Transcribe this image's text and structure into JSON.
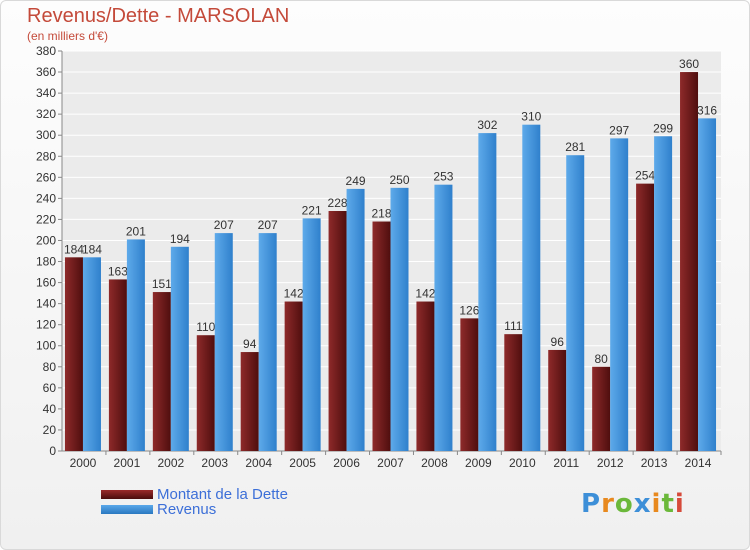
{
  "chart_data": {
    "type": "bar",
    "title": "Revenus/Dette - MARSOLAN",
    "subtitle": "(en milliers d'€)",
    "categories": [
      "2000",
      "2001",
      "2002",
      "2003",
      "2004",
      "2005",
      "2006",
      "2007",
      "2008",
      "2009",
      "2010",
      "2011",
      "2012",
      "2013",
      "2014"
    ],
    "series": [
      {
        "name": "Montant de la Dette",
        "color": "#7a1f1f",
        "values": [
          184,
          163,
          151,
          110,
          94,
          142,
          228,
          218,
          142,
          126,
          111,
          96,
          80,
          254,
          360
        ]
      },
      {
        "name": "Revenus",
        "color": "#3d8fd8",
        "values": [
          184,
          201,
          194,
          207,
          207,
          221,
          249,
          250,
          253,
          302,
          310,
          281,
          297,
          299,
          316
        ]
      }
    ],
    "ylim": [
      0,
      380
    ],
    "yticks": [
      0,
      20,
      40,
      60,
      80,
      100,
      120,
      140,
      160,
      180,
      200,
      220,
      240,
      260,
      280,
      300,
      320,
      340,
      360,
      380
    ],
    "grid": true,
    "legend_position": "bottom-left"
  },
  "logo": {
    "letters": [
      "P",
      "r",
      "o",
      "x",
      "i",
      "t",
      "i"
    ],
    "colors": [
      "#3d8fd8",
      "#e8891e",
      "#6bb83a",
      "#3d8fd8",
      "#e8891e",
      "#6bb83a",
      "#d64a3a"
    ]
  }
}
